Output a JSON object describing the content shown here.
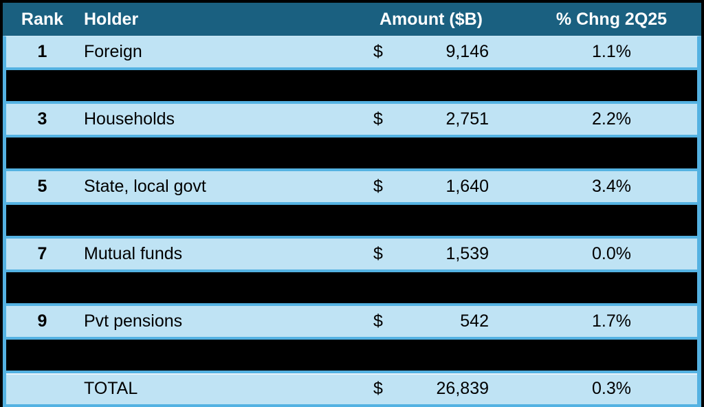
{
  "chart_data": {
    "type": "table",
    "columns": [
      {
        "key": "rank",
        "label": "Rank"
      },
      {
        "key": "holder",
        "label": "Holder"
      },
      {
        "key": "amount",
        "label": "Amount ($B)"
      },
      {
        "key": "pct",
        "label": "% Chng 2Q25"
      }
    ],
    "currency_symbol": "$",
    "rows": [
      {
        "rank": "1",
        "holder": "Foreign",
        "amount": "9,146",
        "pct": "1.1%",
        "redacted": false,
        "total": false
      },
      {
        "redacted": true
      },
      {
        "rank": "3",
        "holder": "Households",
        "amount": "2,751",
        "pct": "2.2%",
        "redacted": false,
        "total": false
      },
      {
        "redacted": true
      },
      {
        "rank": "5",
        "holder": "State, local govt",
        "amount": "1,640",
        "pct": "3.4%",
        "redacted": false,
        "total": false
      },
      {
        "redacted": true
      },
      {
        "rank": "7",
        "holder": "Mutual funds",
        "amount": "1,539",
        "pct": "0.0%",
        "redacted": false,
        "total": false
      },
      {
        "redacted": true
      },
      {
        "rank": "9",
        "holder": "Pvt pensions",
        "amount": "542",
        "pct": "1.7%",
        "redacted": false,
        "total": false
      },
      {
        "redacted": true
      },
      {
        "rank": "",
        "holder": "TOTAL",
        "amount": "26,839",
        "pct": "0.3%",
        "redacted": false,
        "total": true
      }
    ],
    "colors": {
      "header_bg": "#1A6080",
      "header_text": "#FFFFFF",
      "row_bg": "#BFE3F4",
      "redacted_bg": "#000000",
      "grid": "#54B2E2",
      "text": "#000000",
      "frame": "#000000"
    },
    "layout": {
      "legend": "none",
      "grid": "horizontal-separators",
      "note": "alternating rows fully blacked out (redacted)"
    }
  }
}
